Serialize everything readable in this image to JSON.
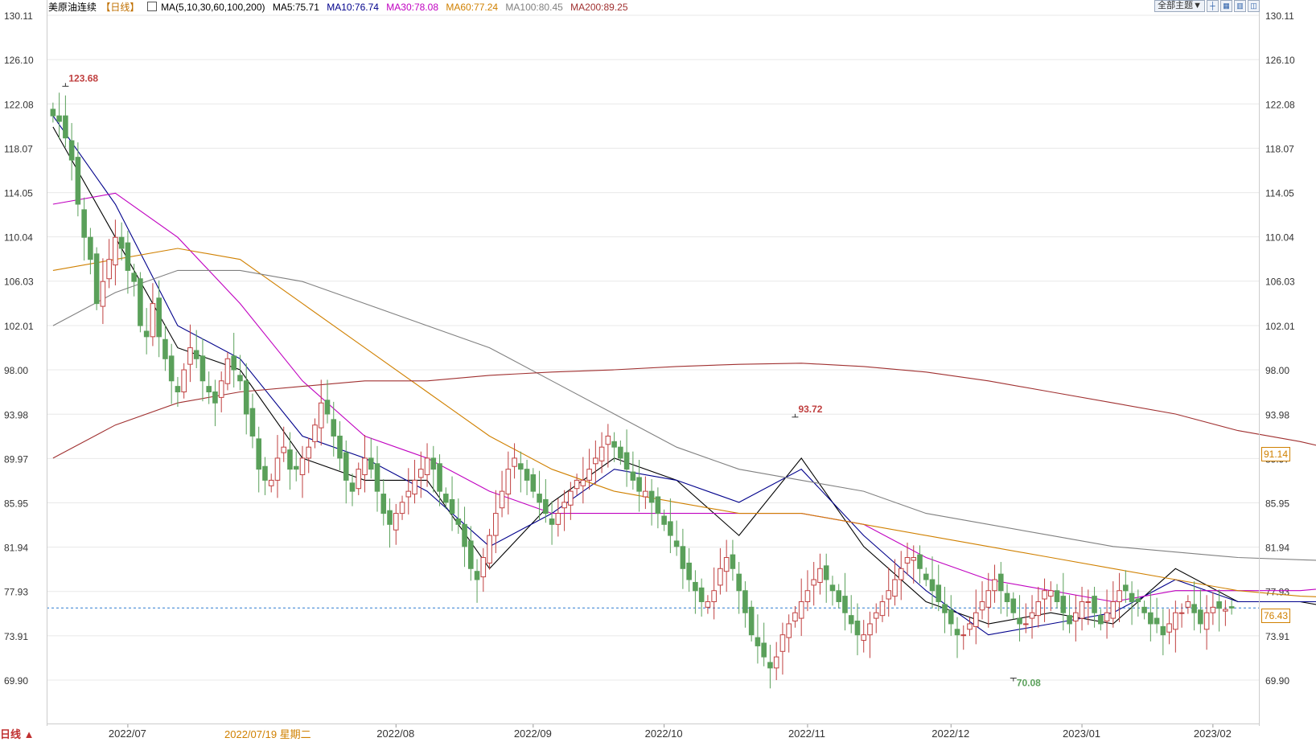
{
  "instrument": "美原油连续",
  "period_label": "【日线】",
  "ma_header": "MA(5,10,30,60,100,200)",
  "ma_values": [
    {
      "label": "MA5:75.71",
      "color": "#000000"
    },
    {
      "label": "MA10:76.74",
      "color": "#00008b"
    },
    {
      "label": "MA30:78.08",
      "color": "#c000c0"
    },
    {
      "label": "MA60:77.24",
      "color": "#d08000"
    },
    {
      "label": "MA100:80.45",
      "color": "#808080"
    },
    {
      "label": "MA200:89.25",
      "color": "#a03030"
    }
  ],
  "toolbar": {
    "theme_label": "全部主题▼",
    "icons": [
      "crosshair-icon",
      "grid-icon",
      "bars-icon",
      "layout-icon"
    ]
  },
  "footer": {
    "period_button": "日线 ▲",
    "cursor_date": "2022/07/19 星期二"
  },
  "right_tags": {
    "current_price": "76.43",
    "ma_price": "91.14"
  },
  "colors": {
    "up": "#c04040",
    "down": "#5aa05a",
    "ma5": "#000000",
    "ma10": "#00008b",
    "ma30": "#c000c0",
    "ma60": "#d08000",
    "ma100": "#808080",
    "ma200": "#a03030",
    "grid": "#e8e8e8",
    "axis_text": "#333333",
    "current_line": "#2a7ad0"
  },
  "chart_data": {
    "type": "candlestick",
    "title": "美原油连续",
    "y_ticks": [
      "130.11",
      "126.10",
      "122.08",
      "118.07",
      "114.05",
      "110.04",
      "106.03",
      "102.01",
      "98.00",
      "93.98",
      "89.97",
      "85.95",
      "81.94",
      "77.93",
      "73.91",
      "69.90"
    ],
    "ylim": [
      68.5,
      130.11
    ],
    "x_ticks": [
      {
        "i": 12,
        "label": "2022/07"
      },
      {
        "i": 55,
        "label": "2022/08"
      },
      {
        "i": 77,
        "label": "2022/09"
      },
      {
        "i": 98,
        "label": "2022/10"
      },
      {
        "i": 121,
        "label": "2022/11"
      },
      {
        "i": 144,
        "label": "2022/12"
      },
      {
        "i": 165,
        "label": "2023/01"
      },
      {
        "i": 186,
        "label": "2023/02"
      }
    ],
    "annotations": [
      {
        "label": "123.68",
        "i": 2,
        "value": 123.68,
        "kind": "high"
      },
      {
        "label": "93.72",
        "i": 119,
        "value": 93.72,
        "kind": "high"
      },
      {
        "label": "70.08",
        "i": 154,
        "value": 70.08,
        "kind": "low"
      }
    ],
    "current_price": 76.43,
    "closes": [
      121,
      120.5,
      119,
      117,
      113,
      110,
      108,
      104,
      106,
      108,
      110,
      109,
      107,
      106,
      102,
      101,
      104,
      101,
      99,
      97,
      96,
      98,
      100,
      99,
      97,
      96,
      95,
      97,
      99,
      98,
      97,
      94,
      92,
      89,
      88,
      88,
      90,
      91,
      89,
      89,
      90,
      91,
      93,
      95,
      94,
      92,
      90,
      88,
      87,
      89,
      90,
      89,
      87,
      85,
      84,
      85,
      86,
      87,
      88,
      89,
      90,
      89,
      87,
      86,
      85,
      84,
      82,
      80,
      79,
      81,
      83,
      85,
      87,
      89,
      90,
      89,
      88,
      87,
      86,
      85,
      84,
      85,
      86,
      87,
      88,
      88,
      89,
      90,
      91,
      92,
      91,
      90,
      89,
      88,
      87,
      87,
      86,
      85,
      84,
      83,
      82,
      80,
      79,
      78,
      77,
      77,
      78,
      80,
      81,
      80,
      78,
      76,
      74,
      73,
      72,
      71,
      72,
      74,
      75,
      76,
      77,
      78,
      79,
      80,
      79,
      78,
      77,
      76,
      75,
      74,
      74,
      75,
      76,
      77,
      78,
      79,
      80,
      81,
      81,
      80,
      79,
      78,
      77,
      76,
      75,
      74,
      74,
      75,
      76,
      77,
      78,
      79,
      78,
      77,
      76,
      75,
      75,
      76,
      77,
      78,
      78,
      77,
      76,
      75,
      76,
      77,
      77,
      76,
      75,
      76,
      77,
      78,
      78,
      77,
      77,
      76,
      75,
      75,
      74,
      75,
      76,
      76,
      77,
      76,
      75,
      76,
      76.5,
      76.4,
      76.3,
      76.43
    ],
    "ma_lines": {
      "MA5": [
        [
          0,
          120
        ],
        [
          10,
          110
        ],
        [
          20,
          100
        ],
        [
          30,
          98
        ],
        [
          40,
          90
        ],
        [
          50,
          88
        ],
        [
          60,
          88
        ],
        [
          70,
          80
        ],
        [
          80,
          86
        ],
        [
          90,
          90
        ],
        [
          100,
          88
        ],
        [
          110,
          83
        ],
        [
          120,
          90
        ],
        [
          130,
          82
        ],
        [
          140,
          77
        ],
        [
          150,
          75
        ],
        [
          160,
          76
        ],
        [
          170,
          75
        ],
        [
          180,
          80
        ],
        [
          190,
          77
        ],
        [
          200,
          77
        ],
        [
          210,
          76
        ],
        [
          219,
          75.7
        ]
      ],
      "MA10": [
        [
          0,
          121
        ],
        [
          10,
          113
        ],
        [
          20,
          102
        ],
        [
          30,
          99
        ],
        [
          40,
          92
        ],
        [
          50,
          90
        ],
        [
          60,
          87
        ],
        [
          70,
          82
        ],
        [
          80,
          85
        ],
        [
          90,
          89
        ],
        [
          100,
          88
        ],
        [
          110,
          86
        ],
        [
          120,
          89
        ],
        [
          130,
          83
        ],
        [
          140,
          78
        ],
        [
          150,
          74
        ],
        [
          160,
          75
        ],
        [
          170,
          76
        ],
        [
          180,
          79
        ],
        [
          190,
          77
        ],
        [
          200,
          77
        ],
        [
          210,
          77
        ],
        [
          219,
          76.7
        ]
      ],
      "MA30": [
        [
          0,
          113
        ],
        [
          10,
          114
        ],
        [
          20,
          110
        ],
        [
          30,
          104
        ],
        [
          40,
          97
        ],
        [
          50,
          92
        ],
        [
          60,
          90
        ],
        [
          70,
          87
        ],
        [
          80,
          85
        ],
        [
          90,
          85
        ],
        [
          100,
          85
        ],
        [
          110,
          85
        ],
        [
          120,
          85
        ],
        [
          130,
          84
        ],
        [
          140,
          81
        ],
        [
          150,
          79
        ],
        [
          160,
          78
        ],
        [
          170,
          77
        ],
        [
          180,
          78
        ],
        [
          190,
          78
        ],
        [
          200,
          78
        ],
        [
          210,
          78.5
        ],
        [
          219,
          78.1
        ]
      ],
      "MA60": [
        [
          0,
          107
        ],
        [
          10,
          108
        ],
        [
          20,
          109
        ],
        [
          30,
          108
        ],
        [
          40,
          104
        ],
        [
          50,
          100
        ],
        [
          60,
          96
        ],
        [
          70,
          92
        ],
        [
          80,
          89
        ],
        [
          90,
          87
        ],
        [
          100,
          86
        ],
        [
          110,
          85
        ],
        [
          120,
          85
        ],
        [
          130,
          84
        ],
        [
          140,
          83
        ],
        [
          150,
          82
        ],
        [
          160,
          81
        ],
        [
          170,
          80
        ],
        [
          180,
          79
        ],
        [
          190,
          78
        ],
        [
          200,
          77.5
        ],
        [
          210,
          77.3
        ],
        [
          219,
          77.2
        ]
      ],
      "MA100": [
        [
          0,
          102
        ],
        [
          10,
          105
        ],
        [
          20,
          107
        ],
        [
          30,
          107
        ],
        [
          40,
          106
        ],
        [
          50,
          104
        ],
        [
          60,
          102
        ],
        [
          70,
          100
        ],
        [
          80,
          97
        ],
        [
          90,
          94
        ],
        [
          100,
          91
        ],
        [
          110,
          89
        ],
        [
          120,
          88
        ],
        [
          130,
          87
        ],
        [
          140,
          85
        ],
        [
          150,
          84
        ],
        [
          160,
          83
        ],
        [
          170,
          82
        ],
        [
          180,
          81.5
        ],
        [
          190,
          81
        ],
        [
          200,
          80.8
        ],
        [
          210,
          80.6
        ],
        [
          219,
          80.45
        ]
      ],
      "MA200": [
        [
          0,
          90
        ],
        [
          10,
          93
        ],
        [
          20,
          95
        ],
        [
          30,
          96
        ],
        [
          40,
          96.5
        ],
        [
          50,
          97
        ],
        [
          60,
          97
        ],
        [
          70,
          97.5
        ],
        [
          80,
          97.8
        ],
        [
          90,
          98
        ],
        [
          100,
          98.3
        ],
        [
          110,
          98.5
        ],
        [
          120,
          98.6
        ],
        [
          130,
          98.3
        ],
        [
          140,
          97.8
        ],
        [
          150,
          97
        ],
        [
          160,
          96
        ],
        [
          170,
          95
        ],
        [
          180,
          94
        ],
        [
          190,
          92.5
        ],
        [
          200,
          91.5
        ],
        [
          210,
          90.2
        ],
        [
          219,
          89.25
        ]
      ]
    }
  }
}
